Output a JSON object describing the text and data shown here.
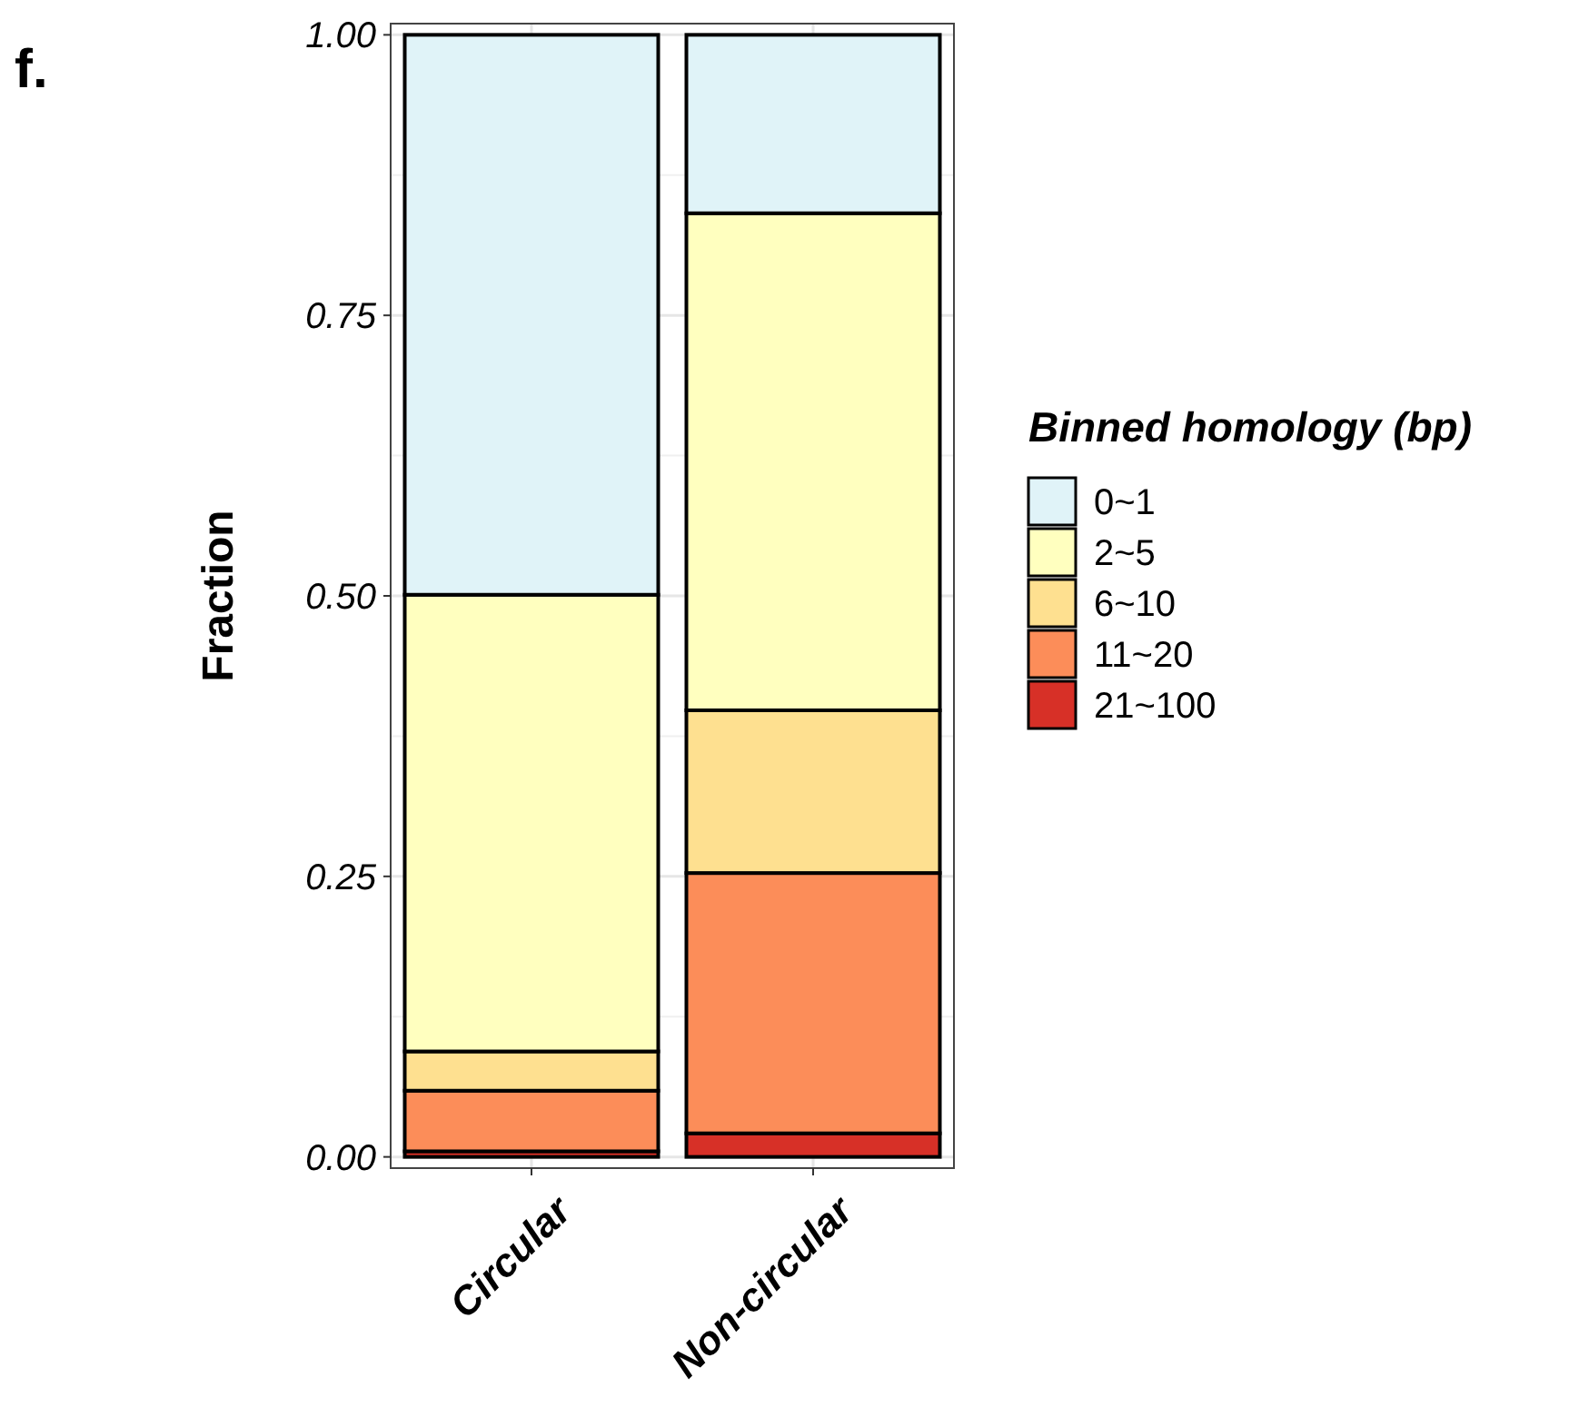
{
  "chart_data": {
    "type": "bar",
    "title": "f.",
    "ylabel": "Fraction",
    "legend_title": "Binned homology (bp)",
    "categories": [
      "Circular",
      "Non-circular"
    ],
    "stacked": true,
    "series": [
      {
        "name": "21~100",
        "color": "#d73027",
        "values": [
          0.005,
          0.021
        ]
      },
      {
        "name": "11~20",
        "color": "#fc8d59",
        "values": [
          0.054,
          0.232
        ]
      },
      {
        "name": "6~10",
        "color": "#fee090",
        "values": [
          0.035,
          0.145
        ]
      },
      {
        "name": "2~5",
        "color": "#ffffbf",
        "values": [
          0.407,
          0.443
        ]
      },
      {
        "name": "0~1",
        "color": "#e0f3f8",
        "values": [
          0.499,
          0.159
        ]
      }
    ],
    "ylim": [
      -0.01,
      1.01
    ],
    "yticks": [
      {
        "value": 0,
        "label": "0.00"
      },
      {
        "value": 0.25,
        "label": "0.25"
      },
      {
        "value": 0.5,
        "label": "0.50"
      },
      {
        "value": 0.75,
        "label": "0.75"
      },
      {
        "value": 1,
        "label": "1.00"
      }
    ],
    "grid": true,
    "legend": "right"
  }
}
